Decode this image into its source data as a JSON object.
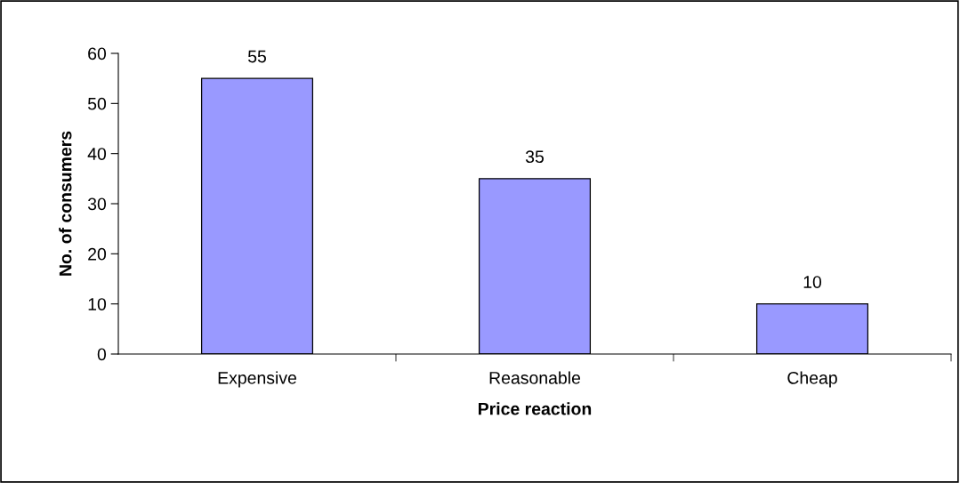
{
  "chart_data": {
    "type": "bar",
    "xlabel": "Price reaction",
    "ylabel": "No. of consumers",
    "categories": [
      "Expensive",
      "Reasonable",
      "Cheap"
    ],
    "values": [
      55,
      35,
      10
    ],
    "color": "#9999ff",
    "ylim": [
      0,
      60
    ],
    "yticks": [
      0,
      10,
      20,
      30,
      40,
      50,
      60
    ],
    "data_labels": true,
    "grid": false,
    "legend": false
  }
}
